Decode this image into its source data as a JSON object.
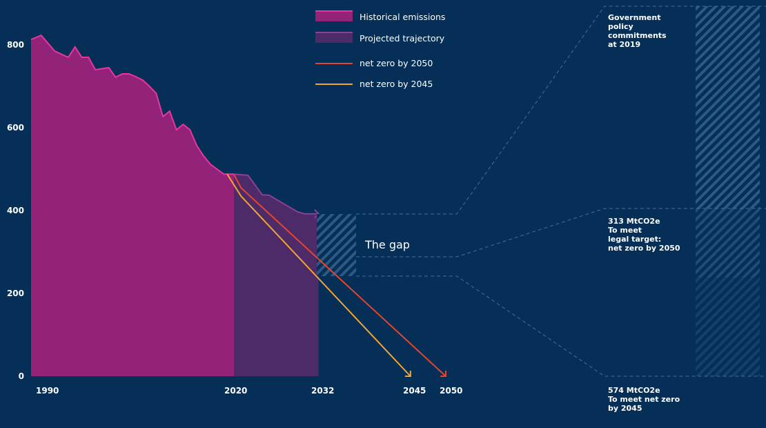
{
  "chart_data": {
    "type": "area",
    "title": "",
    "xlabel": "",
    "ylabel": "",
    "ylim": [
      0,
      850
    ],
    "yticks": [
      "0",
      "200",
      "400",
      "600",
      "800"
    ],
    "ytick_values": [
      0,
      200,
      400,
      600,
      800
    ],
    "xticks": [
      "1990",
      "2020",
      "2032",
      "2045",
      "2050"
    ],
    "xtick_values": [
      1990,
      2020,
      2032,
      2045,
      2050
    ],
    "grid": false,
    "legend_position": "top-center",
    "colors": {
      "background": "#062f57",
      "historical_fill": "#922379",
      "historical_line": "#e8369e",
      "projected_fill": "#4d2a68",
      "projected_line": "#8e3f96",
      "net_zero_2050": "#e8452c",
      "net_zero_2045": "#f4a534",
      "hatch": "#2b5a84",
      "dashed": "#4a6d92"
    },
    "legend": [
      {
        "label": "Historical emissions",
        "kind": "swatch",
        "color": "#922379"
      },
      {
        "label": "Projected trajectory",
        "kind": "swatch",
        "color": "#4d2a68"
      },
      {
        "label": "net zero by 2050",
        "kind": "line",
        "color": "#e8452c"
      },
      {
        "label": "net zero by 2045",
        "kind": "line",
        "color": "#f4a534"
      }
    ],
    "series": [
      {
        "name": "Historical emissions",
        "x": [
          1990,
          1991.5,
          1993.5,
          1995.5,
          1996.5,
          1997.5,
          1998.5,
          1999.5,
          2001.5,
          2002.5,
          2003.5,
          2004.5,
          2005.5,
          2006.5,
          2007.5,
          2008.5,
          2009.5,
          2010.5,
          2011.5,
          2012.5,
          2013.5,
          2014.5,
          2015.5,
          2016.5,
          2017.5,
          2018.5,
          2019.5,
          2020
        ],
        "y": [
          813,
          823,
          785,
          770,
          795,
          770,
          770,
          740,
          745,
          722,
          730,
          730,
          723,
          715,
          700,
          683,
          627,
          640,
          595,
          608,
          595,
          557,
          532,
          512,
          500,
          488,
          488,
          488
        ]
      },
      {
        "name": "Projected trajectory",
        "x": [
          2020,
          2022,
          2024,
          2025,
          2029,
          2030,
          2032
        ],
        "y": [
          488,
          485,
          438,
          437,
          397,
          392,
          392
        ]
      },
      {
        "name": "net zero by 2050",
        "x": [
          2020,
          2021,
          2050
        ],
        "y": [
          487,
          455,
          0
        ]
      },
      {
        "name": "net zero by 2045",
        "x": [
          2019,
          2021,
          2045
        ],
        "y": [
          488,
          435,
          0
        ]
      }
    ],
    "annotations": {
      "gap_label": "The gap",
      "gap_range": [
        242,
        392
      ],
      "gap_mid": 288,
      "policy_note": [
        "Government",
        "policy",
        "commitments",
        "at 2019"
      ],
      "legal_note": [
        "313 MtCO2e",
        "To meet",
        "legal target:",
        "net zero by 2050"
      ],
      "netzero_note": [
        "574 MtCO2e",
        "To meet net zero",
        "by 2045"
      ]
    }
  }
}
